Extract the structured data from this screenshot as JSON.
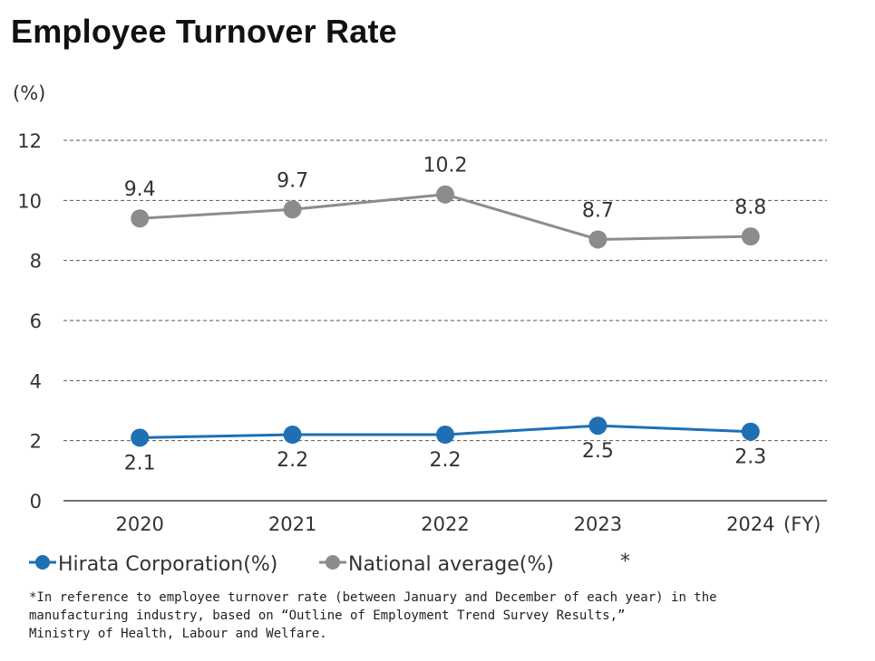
{
  "title": "Employee Turnover Rate",
  "chart_data": {
    "type": "line",
    "title": "Employee Turnover Rate",
    "ylabel": "(%)",
    "xlabel": "(FY)",
    "categories": [
      "2020",
      "2021",
      "2022",
      "2023",
      "2024"
    ],
    "ylim": [
      0,
      12
    ],
    "yticks": [
      "0",
      "2",
      "4",
      "6",
      "8",
      "10",
      "12"
    ],
    "grid": true,
    "legend_position": "bottom-left",
    "series": [
      {
        "name": "Hirata Corporation(%)",
        "values": [
          2.1,
          2.2,
          2.2,
          2.5,
          2.3
        ],
        "labels": [
          "2.1",
          "2.2",
          "2.2",
          "2.5",
          "2.3"
        ],
        "color": "#1f6fb5",
        "label_side": "below"
      },
      {
        "name": "National average(%)",
        "values": [
          9.4,
          9.7,
          10.2,
          8.7,
          8.8
        ],
        "labels": [
          "9.4",
          "9.7",
          "10.2",
          "8.7",
          "8.8"
        ],
        "color": "#8c8c8c",
        "label_side": "above"
      }
    ],
    "legend_note": "*"
  },
  "footnote": "*In reference to employee turnover rate (between January and December of each year) in the\nmanufacturing industry, based on “Outline of Employment Trend Survey Results,”\nMinistry of Health, Labour and Welfare."
}
